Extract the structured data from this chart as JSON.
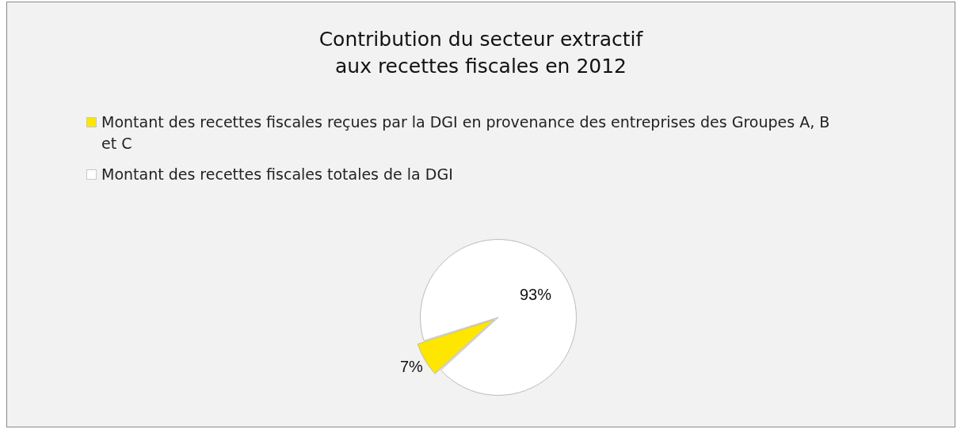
{
  "chart_data": {
    "type": "pie",
    "title": "Contribution du secteur extractif\naux recettes fiscales en 2012",
    "categories": [
      "Montant des recettes fiscales reçues par la DGI en provenance des entreprises des Groupes A, B et C",
      "Montant des recettes fiscales totales de la DGI"
    ],
    "values": [
      7,
      93
    ],
    "colors": [
      "#ffe600",
      "#ffffff"
    ],
    "value_labels": [
      "7%",
      "93%"
    ],
    "legend": "top"
  }
}
